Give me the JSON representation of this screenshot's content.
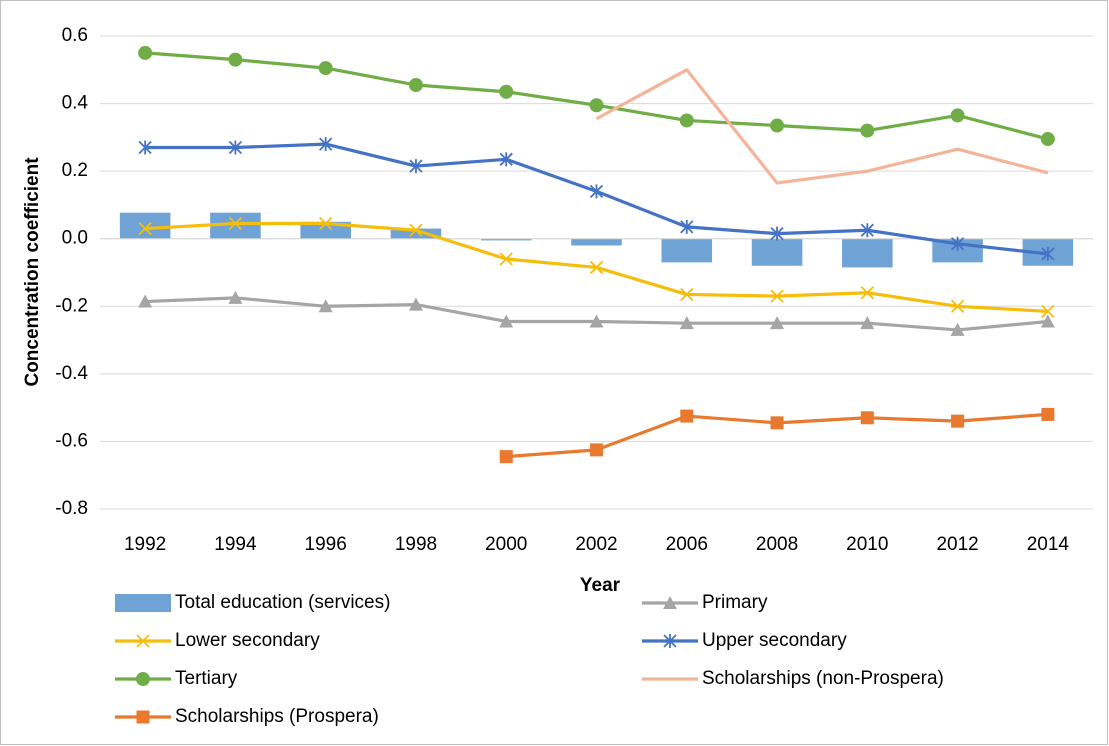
{
  "chart_data": {
    "type": "line",
    "x_label": "Year",
    "y_label": "Concentration coefficient",
    "categories": [
      "1992",
      "1994",
      "1996",
      "1998",
      "2000",
      "2002",
      "2006",
      "2008",
      "2010",
      "2012",
      "2014"
    ],
    "ylim": [
      -0.8,
      0.6
    ],
    "yticks": [
      -0.8,
      -0.6,
      -0.4,
      -0.2,
      {
        "value": 0,
        "label": "0.0"
      },
      0.2,
      0.4,
      0.6
    ],
    "grid": true,
    "series": [
      {
        "name": "Total education (services)",
        "type": "bar",
        "color": "#6fa3d6",
        "values": [
          0.077,
          0.077,
          0.05,
          0.03,
          -0.005,
          -0.02,
          -0.07,
          -0.08,
          -0.085,
          -0.07,
          -0.08
        ]
      },
      {
        "name": "Primary",
        "type": "line",
        "marker": "triangle",
        "color": "#a5a5a5",
        "values": [
          -0.186,
          -0.175,
          -0.2,
          -0.195,
          -0.245,
          -0.245,
          -0.25,
          -0.25,
          -0.25,
          -0.27,
          -0.245
        ]
      },
      {
        "name": "Lower secondary",
        "type": "line",
        "marker": "x",
        "color": "#f5bd0c",
        "values": [
          0.03,
          0.045,
          0.045,
          0.025,
          -0.06,
          -0.085,
          -0.165,
          -0.17,
          -0.16,
          -0.2,
          -0.215
        ]
      },
      {
        "name": "Upper secondary",
        "type": "line",
        "marker": "star",
        "color": "#4472c4",
        "values": [
          0.27,
          0.27,
          0.28,
          0.215,
          0.235,
          0.14,
          0.035,
          0.015,
          0.025,
          -0.015,
          -0.045
        ]
      },
      {
        "name": "Tertiary",
        "type": "line",
        "marker": "circle",
        "color": "#70ad47",
        "values": [
          0.55,
          0.53,
          0.505,
          0.455,
          0.435,
          0.395,
          0.35,
          0.335,
          0.32,
          0.365,
          0.295
        ]
      },
      {
        "name": "Scholarships (non-Prospera)",
        "type": "line",
        "marker": "none",
        "color": "#f4b49a",
        "values": [
          null,
          null,
          null,
          null,
          null,
          0.355,
          0.5,
          0.165,
          0.2,
          0.265,
          0.195
        ]
      },
      {
        "name": "Scholarships (Prospera)",
        "type": "line",
        "marker": "square",
        "color": "#e8792f",
        "values": [
          null,
          null,
          null,
          null,
          -0.645,
          -0.625,
          -0.525,
          -0.545,
          -0.53,
          -0.54,
          -0.52
        ]
      }
    ]
  }
}
